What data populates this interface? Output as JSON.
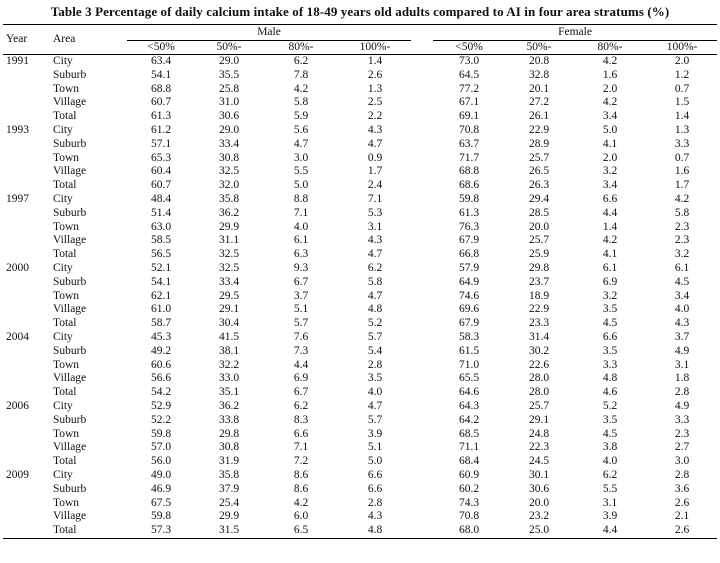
{
  "caption": "Table 3    Percentage of daily calcium intake of 18-49 years old adults compared to AI in four area stratums (%)",
  "headers": {
    "year": "Year",
    "area": "Area",
    "male": "Male",
    "female": "Female",
    "bins": [
      "<50%",
      "50%-",
      "80%-",
      "100%-"
    ]
  },
  "rows": [
    {
      "year": "1991",
      "area": "City",
      "male": [
        "63.4",
        "29.0",
        "6.2",
        "1.4"
      ],
      "female": [
        "73.0",
        "20.8",
        "4.2",
        "2.0"
      ]
    },
    {
      "year": "",
      "area": "Suburb",
      "male": [
        "54.1",
        "35.5",
        "7.8",
        "2.6"
      ],
      "female": [
        "64.5",
        "32.8",
        "1.6",
        "1.2"
      ]
    },
    {
      "year": "",
      "area": "Town",
      "male": [
        "68.8",
        "25.8",
        "4.2",
        "1.3"
      ],
      "female": [
        "77.2",
        "20.1",
        "2.0",
        "0.7"
      ]
    },
    {
      "year": "",
      "area": "Village",
      "male": [
        "60.7",
        "31.0",
        "5.8",
        "2.5"
      ],
      "female": [
        "67.1",
        "27.2",
        "4.2",
        "1.5"
      ]
    },
    {
      "year": "",
      "area": "Total",
      "male": [
        "61.3",
        "30.6",
        "5.9",
        "2.2"
      ],
      "female": [
        "69.1",
        "26.1",
        "3.4",
        "1.4"
      ]
    },
    {
      "year": "1993",
      "area": "City",
      "male": [
        "61.2",
        "29.0",
        "5.6",
        "4.3"
      ],
      "female": [
        "70.8",
        "22.9",
        "5.0",
        "1.3"
      ]
    },
    {
      "year": "",
      "area": "Suburb",
      "male": [
        "57.1",
        "33.4",
        "4.7",
        "4.7"
      ],
      "female": [
        "63.7",
        "28.9",
        "4.1",
        "3.3"
      ]
    },
    {
      "year": "",
      "area": "Town",
      "male": [
        "65.3",
        "30.8",
        "3.0",
        "0.9"
      ],
      "female": [
        "71.7",
        "25.7",
        "2.0",
        "0.7"
      ]
    },
    {
      "year": "",
      "area": "Village",
      "male": [
        "60.4",
        "32.5",
        "5.5",
        "1.7"
      ],
      "female": [
        "68.8",
        "26.5",
        "3.2",
        "1.6"
      ]
    },
    {
      "year": "",
      "area": "Total",
      "male": [
        "60.7",
        "32.0",
        "5.0",
        "2.4"
      ],
      "female": [
        "68.6",
        "26.3",
        "3.4",
        "1.7"
      ]
    },
    {
      "year": "1997",
      "area": "City",
      "male": [
        "48.4",
        "35.8",
        "8.8",
        "7.1"
      ],
      "female": [
        "59.8",
        "29.4",
        "6.6",
        "4.2"
      ]
    },
    {
      "year": "",
      "area": "Suburb",
      "male": [
        "51.4",
        "36.2",
        "7.1",
        "5.3"
      ],
      "female": [
        "61.3",
        "28.5",
        "4.4",
        "5.8"
      ]
    },
    {
      "year": "",
      "area": "Town",
      "male": [
        "63.0",
        "29.9",
        "4.0",
        "3.1"
      ],
      "female": [
        "76.3",
        "20.0",
        "1.4",
        "2.3"
      ]
    },
    {
      "year": "",
      "area": "Village",
      "male": [
        "58.5",
        "31.1",
        "6.1",
        "4.3"
      ],
      "female": [
        "67.9",
        "25.7",
        "4.2",
        "2.3"
      ]
    },
    {
      "year": "",
      "area": "Total",
      "male": [
        "56.5",
        "32.5",
        "6.3",
        "4.7"
      ],
      "female": [
        "66.8",
        "25.9",
        "4.1",
        "3.2"
      ]
    },
    {
      "year": "2000",
      "area": "City",
      "male": [
        "52.1",
        "32.5",
        "9.3",
        "6.2"
      ],
      "female": [
        "57.9",
        "29.8",
        "6.1",
        "6.1"
      ]
    },
    {
      "year": "",
      "area": "Suburb",
      "male": [
        "54.1",
        "33.4",
        "6.7",
        "5.8"
      ],
      "female": [
        "64.9",
        "23.7",
        "6.9",
        "4.5"
      ]
    },
    {
      "year": "",
      "area": "Town",
      "male": [
        "62.1",
        "29.5",
        "3.7",
        "4.7"
      ],
      "female": [
        "74.6",
        "18.9",
        "3.2",
        "3.4"
      ]
    },
    {
      "year": "",
      "area": "Village",
      "male": [
        "61.0",
        "29.1",
        "5.1",
        "4.8"
      ],
      "female": [
        "69.6",
        "22.9",
        "3.5",
        "4.0"
      ]
    },
    {
      "year": "",
      "area": "Total",
      "male": [
        "58.7",
        "30.4",
        "5.7",
        "5.2"
      ],
      "female": [
        "67.9",
        "23.3",
        "4.5",
        "4.3"
      ]
    },
    {
      "year": "2004",
      "area": "City",
      "male": [
        "45.3",
        "41.5",
        "7.6",
        "5.7"
      ],
      "female": [
        "58.3",
        "31.4",
        "6.6",
        "3.7"
      ]
    },
    {
      "year": "",
      "area": "Suburb",
      "male": [
        "49.2",
        "38.1",
        "7.3",
        "5.4"
      ],
      "female": [
        "61.5",
        "30.2",
        "3.5",
        "4.9"
      ]
    },
    {
      "year": "",
      "area": "Town",
      "male": [
        "60.6",
        "32.2",
        "4.4",
        "2.8"
      ],
      "female": [
        "71.0",
        "22.6",
        "3.3",
        "3.1"
      ]
    },
    {
      "year": "",
      "area": "Village",
      "male": [
        "56.6",
        "33.0",
        "6.9",
        "3.5"
      ],
      "female": [
        "65.5",
        "28.0",
        "4.8",
        "1.8"
      ]
    },
    {
      "year": "",
      "area": "Total",
      "male": [
        "54.2",
        "35.1",
        "6.7",
        "4.0"
      ],
      "female": [
        "64.6",
        "28.0",
        "4.6",
        "2.8"
      ]
    },
    {
      "year": "2006",
      "area": "City",
      "male": [
        "52.9",
        "36.2",
        "6.2",
        "4.7"
      ],
      "female": [
        "64.3",
        "25.7",
        "5.2",
        "4.9"
      ]
    },
    {
      "year": "",
      "area": "Suburb",
      "male": [
        "52.2",
        "33.8",
        "8.3",
        "5.7"
      ],
      "female": [
        "64.2",
        "29.1",
        "3.5",
        "3.3"
      ]
    },
    {
      "year": "",
      "area": "Town",
      "male": [
        "59.8",
        "29.8",
        "6.6",
        "3.9"
      ],
      "female": [
        "68.5",
        "24.8",
        "4.5",
        "2.3"
      ]
    },
    {
      "year": "",
      "area": "Village",
      "male": [
        "57.0",
        "30.8",
        "7.1",
        "5.1"
      ],
      "female": [
        "71.1",
        "22.3",
        "3.8",
        "2.7"
      ]
    },
    {
      "year": "",
      "area": "Total",
      "male": [
        "56.0",
        "31.9",
        "7.2",
        "5.0"
      ],
      "female": [
        "68.4",
        "24.5",
        "4.0",
        "3.0"
      ]
    },
    {
      "year": "2009",
      "area": "City",
      "male": [
        "49.0",
        "35.8",
        "8.6",
        "6.6"
      ],
      "female": [
        "60.9",
        "30.1",
        "6.2",
        "2.8"
      ]
    },
    {
      "year": "",
      "area": "Suburb",
      "male": [
        "46.9",
        "37.9",
        "8.6",
        "6.6"
      ],
      "female": [
        "60.2",
        "30.6",
        "5.5",
        "3.6"
      ]
    },
    {
      "year": "",
      "area": "Town",
      "male": [
        "67.5",
        "25.4",
        "4.2",
        "2.8"
      ],
      "female": [
        "74.3",
        "20.0",
        "3.1",
        "2.6"
      ]
    },
    {
      "year": "",
      "area": "Village",
      "male": [
        "59.8",
        "29.9",
        "6.0",
        "4.3"
      ],
      "female": [
        "70.8",
        "23.2",
        "3.9",
        "2.1"
      ]
    },
    {
      "year": "",
      "area": "Total",
      "male": [
        "57.3",
        "31.5",
        "6.5",
        "4.8"
      ],
      "female": [
        "68.0",
        "25.0",
        "4.4",
        "2.6"
      ]
    }
  ]
}
